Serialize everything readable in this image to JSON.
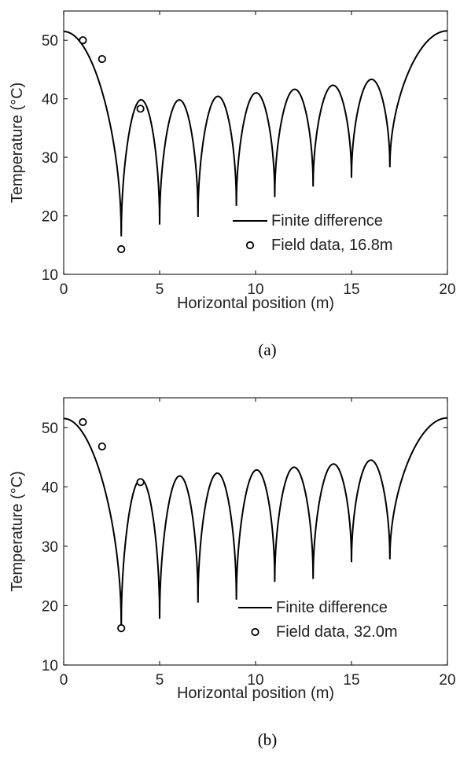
{
  "chart_data": [
    {
      "type": "line",
      "panel_label": "(a)",
      "xlabel": "Horizontal position (m)",
      "ylabel": "Temperature (°C)",
      "xlim": [
        0,
        20
      ],
      "ylim": [
        10,
        55
      ],
      "xticks": [
        0,
        5,
        10,
        15,
        20
      ],
      "yticks": [
        10,
        20,
        30,
        40,
        50
      ],
      "grid": false,
      "legend_position": "bottom-right",
      "series": [
        {
          "name": "Finite difference",
          "style": "line",
          "end_values": [
            51.5,
            51.6
          ],
          "well_x": [
            3,
            5,
            7,
            9,
            11,
            13,
            15,
            17
          ],
          "well_min": [
            16.5,
            18.5,
            19.8,
            21.7,
            23.2,
            25.0,
            26.5,
            28.3
          ],
          "peak_x": [
            4,
            6,
            8,
            10,
            12,
            14,
            16
          ],
          "peak_values": [
            39.8,
            39.8,
            40.4,
            41.0,
            41.6,
            42.3,
            43.3
          ]
        },
        {
          "name": "Field data, 16.8m",
          "style": "marker",
          "x": [
            1,
            2,
            3,
            4
          ],
          "y": [
            50.0,
            46.8,
            14.3,
            38.3
          ]
        }
      ]
    },
    {
      "type": "line",
      "panel_label": "(b)",
      "xlabel": "Horizontal position (m)",
      "ylabel": "Temperature (°C)",
      "xlim": [
        0,
        20
      ],
      "ylim": [
        10,
        55
      ],
      "xticks": [
        0,
        5,
        10,
        15,
        20
      ],
      "yticks": [
        10,
        20,
        30,
        40,
        50
      ],
      "grid": false,
      "legend_position": "bottom-right",
      "series": [
        {
          "name": "Finite difference",
          "style": "line",
          "end_values": [
            51.5,
            51.6
          ],
          "well_x": [
            3,
            5,
            7,
            9,
            11,
            13,
            15,
            17
          ],
          "well_min": [
            16.5,
            17.8,
            20.5,
            21.0,
            24.0,
            24.5,
            27.3,
            27.8
          ],
          "peak_x": [
            4,
            6,
            8,
            10,
            12,
            14,
            16
          ],
          "peak_values": [
            41.3,
            41.8,
            42.3,
            42.8,
            43.3,
            43.8,
            44.5
          ]
        },
        {
          "name": "Field data, 32.0m",
          "style": "marker",
          "x": [
            1,
            2,
            3,
            4
          ],
          "y": [
            50.9,
            46.8,
            16.2,
            40.8
          ]
        }
      ]
    }
  ]
}
